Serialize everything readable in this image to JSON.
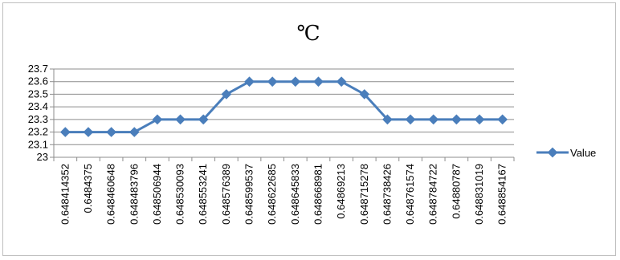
{
  "chart_data": {
    "type": "line",
    "title": "℃",
    "xlabel": "",
    "ylabel": "",
    "categories": [
      "0.648414352",
      "0.6484375",
      "0.648460648",
      "0.648483796",
      "0.648506944",
      "0.648530093",
      "0.648553241",
      "0.648576389",
      "0.648599537",
      "0.648622685",
      "0.648645833",
      "0.648668981",
      "0.648692130",
      "0.648715278",
      "0.648738426",
      "0.648761574",
      "0.648784722",
      "0.648807870",
      "0.648831019",
      "0.648854167"
    ],
    "category_labels": [
      "0.648414352",
      "0.6484375",
      "0.648460648",
      "0.648483796",
      "0.648506944",
      "0.648530093",
      "0.648553241",
      "0.648576389",
      "0.648599537",
      "0.648622685",
      "0.648645833",
      "0.648668981",
      "0.64869213",
      "0.648715278",
      "0.648738426",
      "0.648761574",
      "0.648784722",
      "0.64880787",
      "0.648831019",
      "0.648854167"
    ],
    "series": [
      {
        "name": "Value",
        "color": "#4a7ebb",
        "values": [
          23.2,
          23.2,
          23.2,
          23.2,
          23.3,
          23.3,
          23.3,
          23.5,
          23.6,
          23.6,
          23.6,
          23.6,
          23.6,
          23.5,
          23.3,
          23.3,
          23.3,
          23.3,
          23.3,
          23.3
        ]
      }
    ],
    "ylim": [
      23,
      23.7
    ],
    "yticks": [
      "23",
      "23.1",
      "23.2",
      "23.3",
      "23.4",
      "23.5",
      "23.6",
      "23.7"
    ],
    "grid": true,
    "legend_position": "right",
    "marker": "diamond"
  }
}
